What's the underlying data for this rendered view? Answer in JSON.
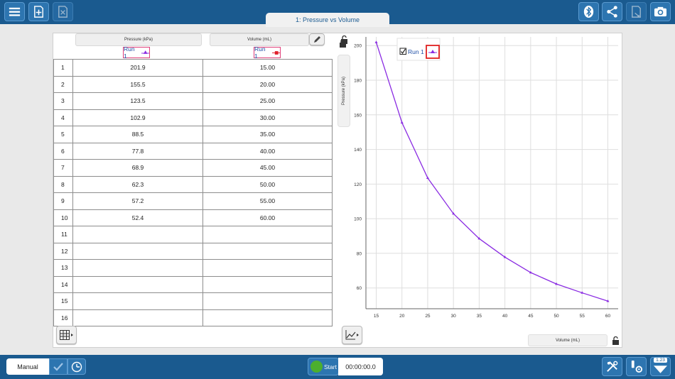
{
  "tab_title": "1: Pressure vs Volume",
  "table": {
    "pressure_header": "Pressure (kPa)",
    "volume_header": "Volume (mL)",
    "run_label": "Run 1",
    "rows": [
      {
        "n": "1",
        "p": "201.9",
        "v": "15.00"
      },
      {
        "n": "2",
        "p": "155.5",
        "v": "20.00"
      },
      {
        "n": "3",
        "p": "123.5",
        "v": "25.00"
      },
      {
        "n": "4",
        "p": "102.9",
        "v": "30.00"
      },
      {
        "n": "5",
        "p": "88.5",
        "v": "35.00"
      },
      {
        "n": "6",
        "p": "77.8",
        "v": "40.00"
      },
      {
        "n": "7",
        "p": "68.9",
        "v": "45.00"
      },
      {
        "n": "8",
        "p": "62.3",
        "v": "50.00"
      },
      {
        "n": "9",
        "p": "57.2",
        "v": "55.00"
      },
      {
        "n": "10",
        "p": "52.4",
        "v": "60.00"
      },
      {
        "n": "11",
        "p": "",
        "v": ""
      },
      {
        "n": "12",
        "p": "",
        "v": ""
      },
      {
        "n": "13",
        "p": "",
        "v": ""
      },
      {
        "n": "14",
        "p": "",
        "v": ""
      },
      {
        "n": "15",
        "p": "",
        "v": ""
      },
      {
        "n": "16",
        "p": "",
        "v": ""
      }
    ]
  },
  "chart_data": {
    "type": "line",
    "xlabel": "Volume (mL)",
    "ylabel": "Pressure (kPa)",
    "x": [
      15,
      20,
      25,
      30,
      35,
      40,
      45,
      50,
      55,
      60
    ],
    "series": [
      {
        "name": "Run 1",
        "color": "#8a2be2",
        "values": [
          201.9,
          155.5,
          123.5,
          102.9,
          88.5,
          77.8,
          68.9,
          62.3,
          57.2,
          52.4
        ]
      }
    ],
    "xlim": [
      13,
      62
    ],
    "ylim": [
      48,
      205
    ],
    "xticks": [
      "15",
      "20",
      "25",
      "30",
      "35",
      "40",
      "45",
      "50",
      "55",
      "60"
    ],
    "yticks": [
      "60",
      "80",
      "100",
      "120",
      "140",
      "160",
      "180",
      "200"
    ],
    "grid": true,
    "legend": "top-left"
  },
  "bottom": {
    "mode": "Manual",
    "start_label": "Start",
    "timer": "00:00:00.0",
    "version_badge": "1.23"
  },
  "colors": {
    "topbar": "#1a5a8f",
    "accent": "#2d75b0",
    "series": "#8a2be2",
    "marker_box": "#e02020",
    "start": "#4caf2e"
  },
  "icons": {
    "menu": "hamburger-icon",
    "new_file": "new-file-icon",
    "close_file": "close-file-icon",
    "bluetooth": "bluetooth-icon",
    "share": "share-icon",
    "export": "export-icon",
    "camera": "camera-icon",
    "edit": "pencil-icon",
    "lock": "unlock-icon",
    "table": "table-icon",
    "graph": "graph-icon",
    "tools": "tools-icon",
    "sensor_settings": "sensor-settings-icon",
    "meter": "meter-icon"
  }
}
